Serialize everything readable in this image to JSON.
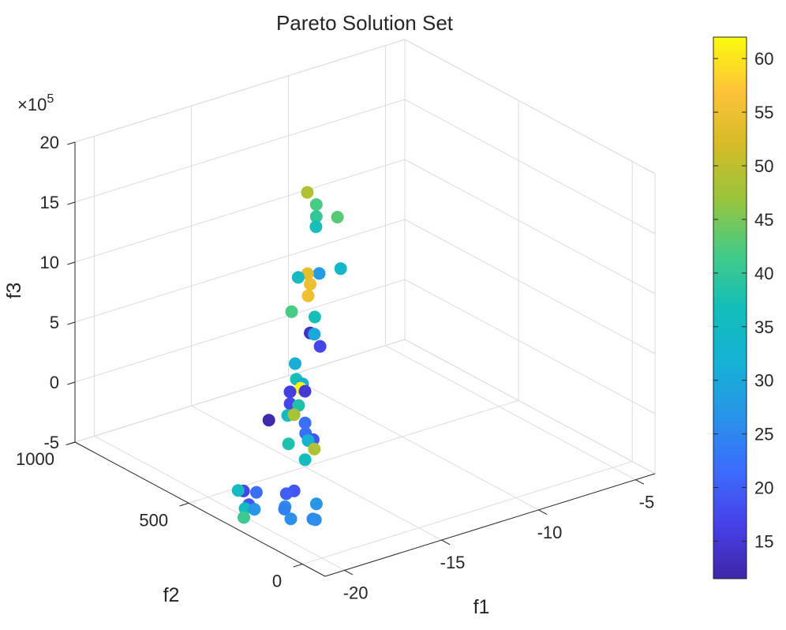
{
  "chart_data": {
    "type": "scatter3d",
    "title": "Pareto Solution Set",
    "xlabel": "f1",
    "ylabel": "f2",
    "zlabel": "f3",
    "z_exponent_base": "×10",
    "z_exponent_power": "5",
    "xlim": [
      -21,
      -4
    ],
    "ylim": [
      -100,
      1000
    ],
    "zlim": [
      -5,
      20
    ],
    "xticks": [
      -20,
      -15,
      -10,
      -5
    ],
    "yticks": [
      0,
      500,
      1000
    ],
    "zticks": [
      -5,
      0,
      5,
      10,
      15,
      20
    ],
    "grid": true,
    "colorbar": {
      "colormap": "parula",
      "min": 11.5,
      "max": 62,
      "ticks": [
        15,
        20,
        25,
        30,
        35,
        40,
        45,
        50,
        55,
        60
      ]
    },
    "points": [
      {
        "x": -15.69,
        "y": 431.4,
        "z": 18.92,
        "c": 49
      },
      {
        "x": -15.8,
        "y": 382.6,
        "z": 18.46,
        "c": 42
      },
      {
        "x": -15.8,
        "y": 382.6,
        "z": 17.46,
        "c": 40
      },
      {
        "x": -15.81,
        "y": 383.2,
        "z": 16.61,
        "c": 37
      },
      {
        "x": -15.14,
        "y": 346.0,
        "z": 17.45,
        "c": 43
      },
      {
        "x": -15.04,
        "y": 340.3,
        "z": 13.16,
        "c": 34
      },
      {
        "x": -15.71,
        "y": 377.5,
        "z": 12.72,
        "c": 28
      },
      {
        "x": -16.08,
        "y": 397.3,
        "z": 12.69,
        "c": 54
      },
      {
        "x": -16.37,
        "y": 413.2,
        "z": 12.36,
        "c": 35
      },
      {
        "x": -15.99,
        "y": 392.9,
        "z": 11.81,
        "c": 55
      },
      {
        "x": -16.05,
        "y": 397.1,
        "z": 10.83,
        "c": 55
      },
      {
        "x": -16.57,
        "y": 425.3,
        "z": 9.48,
        "c": 42
      },
      {
        "x": -15.85,
        "y": 384.8,
        "z": 9.09,
        "c": 37
      },
      {
        "x": -15.99,
        "y": 393.4,
        "z": 7.74,
        "c": 14
      },
      {
        "x": -15.86,
        "y": 386.0,
        "z": 7.65,
        "c": 30
      },
      {
        "x": -15.69,
        "y": 375.4,
        "z": 6.66,
        "c": 17
      },
      {
        "x": -16.46,
        "y": 419.2,
        "z": 5.16,
        "c": 31
      },
      {
        "x": -16.42,
        "y": 417.3,
        "z": 3.86,
        "c": 37
      },
      {
        "x": -16.23,
        "y": 405.9,
        "z": 3.49,
        "c": 31
      },
      {
        "x": -16.29,
        "y": 409.4,
        "z": 3.12,
        "c": 62
      },
      {
        "x": -16.15,
        "y": 402.4,
        "z": 2.87,
        "c": 15
      },
      {
        "x": -16.63,
        "y": 427.2,
        "z": 2.81,
        "c": 16
      },
      {
        "x": -16.63,
        "y": 426.8,
        "z": 1.83,
        "c": 17
      },
      {
        "x": -16.35,
        "y": 413.2,
        "z": 1.68,
        "c": 38
      },
      {
        "x": -16.7,
        "y": 431.6,
        "z": 0.84,
        "c": 35
      },
      {
        "x": -16.5,
        "y": 420.7,
        "z": 0.91,
        "c": 48
      },
      {
        "x": -16.15,
        "y": 401.9,
        "z": 0.24,
        "c": 22
      },
      {
        "x": -17.29,
        "y": 464.0,
        "z": 0.41,
        "c": 12
      },
      {
        "x": -16.13,
        "y": 401.3,
        "z": -0.63,
        "c": 22
      },
      {
        "x": -15.89,
        "y": 388.4,
        "z": -1.15,
        "c": 19
      },
      {
        "x": -16.05,
        "y": 397.2,
        "z": -1.23,
        "c": 32
      },
      {
        "x": -16.67,
        "y": 430.4,
        "z": -1.53,
        "c": 38
      },
      {
        "x": -15.86,
        "y": 386.0,
        "z": -1.92,
        "c": 49
      },
      {
        "x": -16.15,
        "y": 401.9,
        "z": -2.82,
        "c": 36
      },
      {
        "x": -16.61,
        "y": 411.1,
        "z": -5.29,
        "c": 19
      },
      {
        "x": -17.01,
        "y": 411.1,
        "z": -5.32,
        "c": 20
      },
      {
        "x": -16.26,
        "y": 342.8,
        "z": -5.85,
        "c": 27
      },
      {
        "x": -18.4,
        "y": 480.8,
        "z": -5.1,
        "c": 17
      },
      {
        "x": -18.66,
        "y": 482.2,
        "z": -4.94,
        "c": 35
      },
      {
        "x": -18.09,
        "y": 450.6,
        "z": -5.06,
        "c": 22
      },
      {
        "x": -18.34,
        "y": 462.6,
        "z": -6.09,
        "c": 19
      },
      {
        "x": -18.44,
        "y": 470.8,
        "z": -6.44,
        "c": 36
      },
      {
        "x": -18.16,
        "y": 453.4,
        "z": -6.47,
        "c": 27
      },
      {
        "x": -18.49,
        "y": 471.5,
        "z": -7.17,
        "c": 41
      },
      {
        "x": -18.74,
        "y": 269.2,
        "z": -4.08,
        "c": 27
      },
      {
        "x": -18.76,
        "y": 269.9,
        "z": -4.29,
        "c": 24
      },
      {
        "x": -18.58,
        "y": 160.3,
        "z": -4.09,
        "c": 25
      },
      {
        "x": -18.5,
        "y": 155.9,
        "z": -4.15,
        "c": 26
      },
      {
        "x": -19.27,
        "y": 198.6,
        "z": -4.12,
        "c": 26
      }
    ]
  }
}
